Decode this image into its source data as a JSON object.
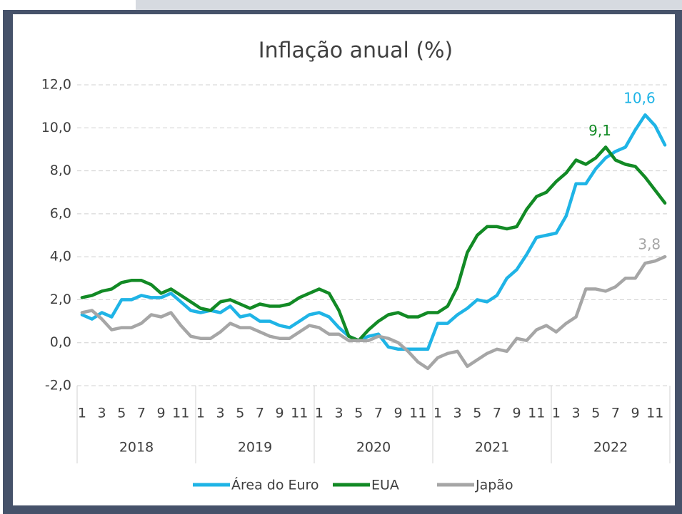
{
  "chart_data": {
    "type": "line",
    "title": "Inflação anual (%)",
    "categories": [
      "1",
      null,
      "3",
      null,
      "5",
      null,
      "7",
      null,
      "9",
      null,
      "11",
      null,
      "1",
      null,
      "3",
      null,
      "5",
      null,
      "7",
      null,
      "9",
      null,
      "11",
      null,
      "1",
      null,
      "3",
      null,
      "5",
      null,
      "7",
      null,
      "9",
      null,
      "11",
      null,
      "1",
      null,
      "3",
      null,
      "5",
      null,
      "7",
      null,
      "9",
      null,
      "11",
      null,
      "1",
      null,
      "3",
      null,
      "5",
      null,
      "7",
      null,
      "9",
      null,
      "11",
      null
    ],
    "category_groups": [
      "2018",
      "2019",
      "2020",
      "2021",
      "2022"
    ],
    "series": [
      {
        "name": "Área do Euro",
        "color": "#1fb4e6",
        "values": [
          1.3,
          1.1,
          1.4,
          1.2,
          2.0,
          2.0,
          2.2,
          2.1,
          2.1,
          2.3,
          1.9,
          1.5,
          1.4,
          1.5,
          1.4,
          1.7,
          1.2,
          1.3,
          1.0,
          1.0,
          0.8,
          0.7,
          1.0,
          1.3,
          1.4,
          1.2,
          0.7,
          0.3,
          0.1,
          0.3,
          0.4,
          -0.2,
          -0.3,
          -0.3,
          -0.3,
          -0.3,
          0.9,
          0.9,
          1.3,
          1.6,
          2.0,
          1.9,
          2.2,
          3.0,
          3.4,
          4.1,
          4.9,
          5.0,
          5.1,
          5.9,
          7.4,
          7.4,
          8.1,
          8.6,
          8.9,
          9.1,
          9.9,
          10.6,
          10.1,
          9.2
        ],
        "value_labels": [
          null,
          null,
          null,
          null,
          null,
          null,
          null,
          null,
          null,
          null,
          null,
          null,
          null,
          null,
          null,
          null,
          null,
          null,
          null,
          null,
          null,
          null,
          null,
          null,
          null,
          null,
          null,
          null,
          null,
          null,
          null,
          null,
          null,
          null,
          null,
          null,
          null,
          null,
          null,
          null,
          null,
          null,
          null,
          null,
          null,
          null,
          null,
          null,
          null,
          null,
          null,
          null,
          null,
          null,
          null,
          null,
          null,
          "10,6",
          null,
          null
        ]
      },
      {
        "name": "EUA",
        "color": "#128a25",
        "values": [
          2.1,
          2.2,
          2.4,
          2.5,
          2.8,
          2.9,
          2.9,
          2.7,
          2.3,
          2.5,
          2.2,
          1.9,
          1.6,
          1.5,
          1.9,
          2.0,
          1.8,
          1.6,
          1.8,
          1.7,
          1.7,
          1.8,
          2.1,
          2.3,
          2.5,
          2.3,
          1.5,
          0.3,
          0.1,
          0.6,
          1.0,
          1.3,
          1.4,
          1.2,
          1.2,
          1.4,
          1.4,
          1.7,
          2.6,
          4.2,
          5.0,
          5.4,
          5.4,
          5.3,
          5.4,
          6.2,
          6.8,
          7.0,
          7.5,
          7.9,
          8.5,
          8.3,
          8.6,
          9.1,
          8.5,
          8.3,
          8.2,
          7.7,
          7.1,
          6.5
        ],
        "value_labels": [
          null,
          null,
          null,
          null,
          null,
          null,
          null,
          null,
          null,
          null,
          null,
          null,
          null,
          null,
          null,
          null,
          null,
          null,
          null,
          null,
          null,
          null,
          null,
          null,
          null,
          null,
          null,
          null,
          null,
          null,
          null,
          null,
          null,
          null,
          null,
          null,
          null,
          null,
          null,
          null,
          null,
          null,
          null,
          null,
          null,
          null,
          null,
          null,
          null,
          null,
          null,
          null,
          null,
          "9,1",
          null,
          null,
          null,
          null,
          null,
          null
        ]
      },
      {
        "name": "Japão",
        "color": "#a6a6a6",
        "values": [
          1.4,
          1.5,
          1.1,
          0.6,
          0.7,
          0.7,
          0.9,
          1.3,
          1.2,
          1.4,
          0.8,
          0.3,
          0.2,
          0.2,
          0.5,
          0.9,
          0.7,
          0.7,
          0.5,
          0.3,
          0.2,
          0.2,
          0.5,
          0.8,
          0.7,
          0.4,
          0.4,
          0.1,
          0.1,
          0.1,
          0.3,
          0.2,
          0.0,
          -0.4,
          -0.9,
          -1.2,
          -0.7,
          -0.5,
          -0.4,
          -1.1,
          -0.8,
          -0.5,
          -0.3,
          -0.4,
          0.2,
          0.1,
          0.6,
          0.8,
          0.5,
          0.9,
          1.2,
          2.5,
          2.5,
          2.4,
          2.6,
          3.0,
          3.0,
          3.7,
          3.8,
          4.0
        ],
        "value_labels": [
          null,
          null,
          null,
          null,
          null,
          null,
          null,
          null,
          null,
          null,
          null,
          null,
          null,
          null,
          null,
          null,
          null,
          null,
          null,
          null,
          null,
          null,
          null,
          null,
          null,
          null,
          null,
          null,
          null,
          null,
          null,
          null,
          null,
          null,
          null,
          null,
          null,
          null,
          null,
          null,
          null,
          null,
          null,
          null,
          null,
          null,
          null,
          null,
          null,
          null,
          null,
          null,
          null,
          null,
          null,
          null,
          null,
          null,
          "3,8",
          null
        ]
      }
    ],
    "ylim": [
      -2,
      12
    ],
    "yticks": [
      {
        "value": -2,
        "label": "-2,0"
      },
      {
        "value": 0,
        "label": "0,0"
      },
      {
        "value": 2,
        "label": "2,0"
      },
      {
        "value": 4,
        "label": "4,0"
      },
      {
        "value": 6,
        "label": "6,0"
      },
      {
        "value": 8,
        "label": "8,0"
      },
      {
        "value": 10,
        "label": "10,0"
      },
      {
        "value": 12,
        "label": "12,0"
      }
    ],
    "grid": true,
    "legend": "bottom"
  }
}
